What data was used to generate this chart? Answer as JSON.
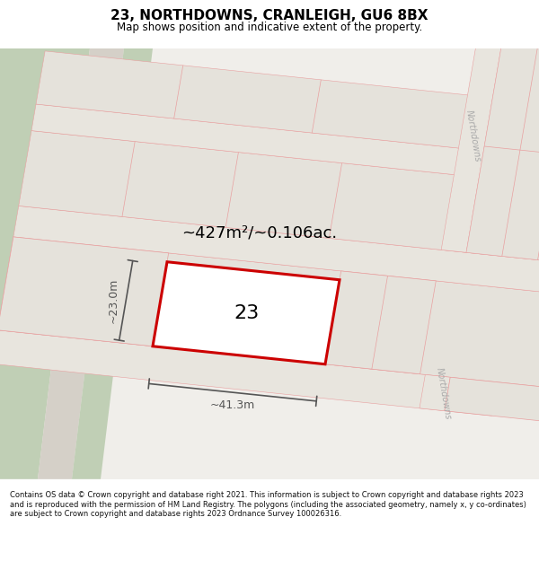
{
  "title": "23, NORTHDOWNS, CRANLEIGH, GU6 8BX",
  "subtitle": "Map shows position and indicative extent of the property.",
  "footer": "Contains OS data © Crown copyright and database right 2021. This information is subject to Crown copyright and database rights 2023 and is reproduced with the permission of HM Land Registry. The polygons (including the associated geometry, namely x, y co-ordinates) are subject to Crown copyright and database rights 2023 Ordnance Survey 100026316.",
  "area_text": "~427m²/~0.106ac.",
  "number_text": "23",
  "dim_h_text": "~23.0m",
  "dim_w_text": "~41.3m",
  "street_name_1": "Northdowns",
  "street_name_2": "Northdowns",
  "bg_color": "#f0eeea",
  "plot_fill": "#e5e2db",
  "plot_edge": "#e8a0a0",
  "green_color": "#c0cfb5",
  "grey_path": "#d5d0c8",
  "highlight_fill": "#ffffff",
  "highlight_edge": "#cc0000",
  "dim_color": "#555555",
  "road_fill": "#e8e5de",
  "text_gray": "#aaaaaa",
  "title_fontsize": 11,
  "subtitle_fontsize": 8.5,
  "footer_fontsize": 6.0,
  "area_fontsize": 13,
  "number_fontsize": 16,
  "dim_fontsize": 9,
  "street_fontsize": 7
}
